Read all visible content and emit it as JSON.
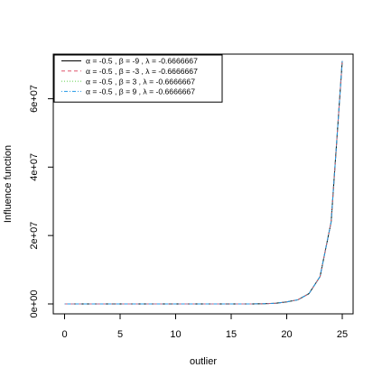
{
  "chart_data": {
    "type": "line",
    "title": "",
    "xlabel": "outlier",
    "ylabel": "Influence function",
    "xlim": [
      0,
      25
    ],
    "ylim": [
      0,
      70000000
    ],
    "x_ticks": [
      0,
      5,
      10,
      15,
      20,
      25
    ],
    "x_tick_labels": [
      "0",
      "5",
      "10",
      "15",
      "20",
      "25"
    ],
    "y_ticks": [
      0,
      20000000,
      40000000,
      60000000
    ],
    "y_tick_labels": [
      "0e+00",
      "2e+07",
      "4e+07",
      "6e+07"
    ],
    "grid": false,
    "legend_position": "top-left",
    "x": [
      0,
      1,
      2,
      3,
      4,
      5,
      6,
      7,
      8,
      9,
      10,
      11,
      12,
      13,
      14,
      15,
      16,
      17,
      18,
      19,
      20,
      21,
      22,
      23,
      24,
      25
    ],
    "series": [
      {
        "name": "α = -0.5 ,  β = -9 ,  λ = -0.6666667",
        "color": "#000000",
        "dash": "solid",
        "values": [
          0,
          0,
          0,
          0,
          0,
          0,
          0,
          0,
          0,
          0,
          0,
          0,
          0,
          0,
          0,
          0,
          5000,
          15000,
          60000,
          200000,
          600000,
          1200000,
          3000000,
          8000000,
          24000000,
          71000000
        ]
      },
      {
        "name": "α = -0.5 ,  β = -3 ,  λ = -0.6666667",
        "color": "#df536b",
        "dash": "dashed",
        "values": [
          0,
          0,
          0,
          0,
          0,
          0,
          0,
          0,
          0,
          0,
          0,
          0,
          0,
          0,
          0,
          0,
          5000,
          15000,
          60000,
          200000,
          600000,
          1200000,
          3000000,
          8000000,
          24000000,
          71000000
        ]
      },
      {
        "name": "α = -0.5 ,  β = 3 ,  λ = -0.6666667",
        "color": "#61d04f",
        "dash": "dotted",
        "values": [
          0,
          0,
          0,
          0,
          0,
          0,
          0,
          0,
          0,
          0,
          0,
          0,
          0,
          0,
          0,
          0,
          5000,
          15000,
          60000,
          200000,
          600000,
          1200000,
          3000000,
          8000000,
          24000000,
          71000000
        ]
      },
      {
        "name": "α = -0.5 ,  β = 9 ,  λ = -0.6666667",
        "color": "#2297e6",
        "dash": "dotdash",
        "values": [
          0,
          0,
          0,
          0,
          0,
          0,
          0,
          0,
          0,
          0,
          0,
          0,
          0,
          0,
          0,
          0,
          5000,
          15000,
          60000,
          200000,
          600000,
          1200000,
          3000000,
          8000000,
          24000000,
          71000000
        ]
      }
    ]
  }
}
